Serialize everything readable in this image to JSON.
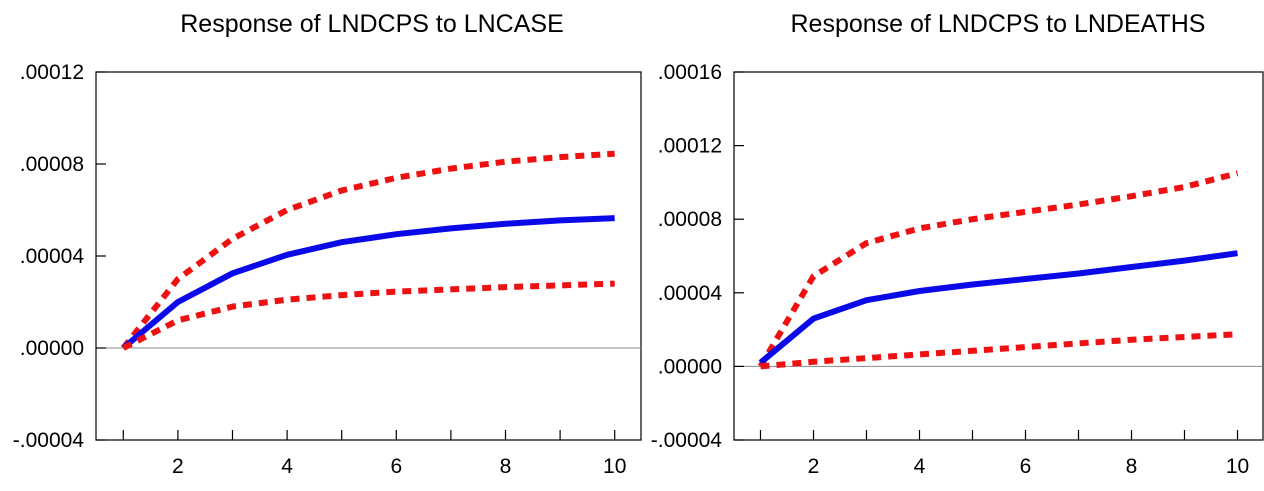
{
  "chart_data": [
    {
      "type": "line",
      "title": "Response of LNDCPS to LNCASE",
      "xlabel": "",
      "ylabel": "",
      "x": [
        1,
        2,
        3,
        4,
        5,
        6,
        7,
        8,
        9,
        10
      ],
      "xlim": [
        0.5,
        10.5
      ],
      "xticks": [
        1,
        2,
        3,
        4,
        5,
        6,
        7,
        8,
        9,
        10
      ],
      "xtick_labels": [
        "",
        "2",
        "",
        "4",
        "",
        "6",
        "",
        "8",
        "",
        "10"
      ],
      "ylim": [
        -4e-05,
        0.00012
      ],
      "yticks": [
        -4e-05,
        0.0,
        4e-05,
        8e-05,
        0.00012
      ],
      "ytick_labels": [
        "-.00004",
        ".00000",
        ".00004",
        ".00008",
        ".00012"
      ],
      "zero_line": true,
      "grid": false,
      "series": [
        {
          "role": "upper-band",
          "color": "#ee1111",
          "style": "dotted",
          "values": [
            0.0,
            3e-05,
            4.75e-05,
            6e-05,
            6.85e-05,
            7.4e-05,
            7.8e-05,
            8.1e-05,
            8.3e-05,
            8.45e-05
          ]
        },
        {
          "role": "response",
          "color": "#0a0ae8",
          "style": "solid",
          "values": [
            0.0,
            2e-05,
            3.25e-05,
            4.05e-05,
            4.6e-05,
            4.95e-05,
            5.2e-05,
            5.4e-05,
            5.55e-05,
            5.65e-05
          ]
        },
        {
          "role": "lower-band",
          "color": "#ee1111",
          "style": "dotted",
          "values": [
            0.0,
            1.2e-05,
            1.8e-05,
            2.1e-05,
            2.3e-05,
            2.45e-05,
            2.55e-05,
            2.65e-05,
            2.72e-05,
            2.8e-05
          ]
        }
      ]
    },
    {
      "type": "line",
      "title": "Response of LNDCPS to LNDEATHS",
      "xlabel": "",
      "ylabel": "",
      "x": [
        1,
        2,
        3,
        4,
        5,
        6,
        7,
        8,
        9,
        10
      ],
      "xlim": [
        0.5,
        10.5
      ],
      "xticks": [
        1,
        2,
        3,
        4,
        5,
        6,
        7,
        8,
        9,
        10
      ],
      "xtick_labels": [
        "",
        "2",
        "",
        "4",
        "",
        "6",
        "",
        "8",
        "",
        "10"
      ],
      "ylim": [
        -4e-05,
        0.00016
      ],
      "yticks": [
        -4e-05,
        0.0,
        4e-05,
        8e-05,
        0.00012,
        0.00016
      ],
      "ytick_labels": [
        "-.00004",
        ".00000",
        ".00004",
        ".00008",
        ".00012",
        ".00016"
      ],
      "zero_line": true,
      "grid": false,
      "series": [
        {
          "role": "upper-band",
          "color": "#ee1111",
          "style": "dotted",
          "values": [
            0.0,
            4.9e-05,
            6.7e-05,
            7.5e-05,
            8e-05,
            8.4e-05,
            8.8e-05,
            9.25e-05,
            9.75e-05,
            0.000105
          ]
        },
        {
          "role": "response",
          "color": "#0a0ae8",
          "style": "solid",
          "values": [
            2e-06,
            2.6e-05,
            3.6e-05,
            4.1e-05,
            4.45e-05,
            4.75e-05,
            5.05e-05,
            5.4e-05,
            5.75e-05,
            6.15e-05
          ]
        },
        {
          "role": "lower-band",
          "color": "#ee1111",
          "style": "dotted",
          "values": [
            0.0,
            2.5e-06,
            4.5e-06,
            6.5e-06,
            8.5e-06,
            1.05e-05,
            1.25e-05,
            1.45e-05,
            1.6e-05,
            1.75e-05
          ]
        }
      ]
    }
  ]
}
